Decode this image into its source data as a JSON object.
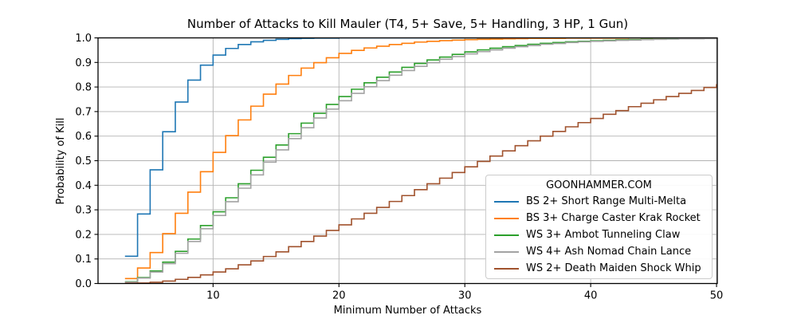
{
  "figure": {
    "title": "Number of Attacks to Kill Mauler (T4, 5+ Save, 5+ Handling, 3 HP, 1 Gun)"
  },
  "axes": {
    "xlabel": "Minimum Number of Attacks",
    "ylabel": "Probability of Kill",
    "x_tick_labels": [
      "10",
      "20",
      "30",
      "40",
      "50"
    ],
    "y_tick_labels": [
      "0.0",
      "0.1",
      "0.2",
      "0.3",
      "0.4",
      "0.5",
      "0.6",
      "0.7",
      "0.8",
      "0.9",
      "1.0"
    ]
  },
  "legend": {
    "title": "GOONHAMMER.COM"
  },
  "colors": {
    "grid": "#b3b3b3",
    "spine": "#000000",
    "legend_border": "#cccccc"
  },
  "chart_data": {
    "type": "line",
    "step_mode": "post",
    "title": "Number of Attacks to Kill Mauler (T4, 5+ Save, 5+ Handling, 3 HP, 1 Gun)",
    "xlabel": "Minimum Number of Attacks",
    "ylabel": "Probability of Kill",
    "grid": true,
    "legend_position": "lower right",
    "legend_title": "GOONHAMMER.COM",
    "xlim": [
      0.86,
      50.06
    ],
    "ylim": [
      0,
      1
    ],
    "x_ticks": [
      10,
      20,
      30,
      40,
      50
    ],
    "y_ticks": [
      0,
      0.1,
      0.2,
      0.3,
      0.4,
      0.5,
      0.6,
      0.7,
      0.8,
      0.9,
      1.0
    ],
    "x": [
      3,
      4,
      5,
      6,
      7,
      8,
      9,
      10,
      11,
      12,
      13,
      14,
      15,
      16,
      17,
      18,
      19,
      20,
      21,
      22,
      23,
      24,
      25,
      26,
      27,
      28,
      29,
      30,
      31,
      32,
      33,
      34,
      35,
      36,
      37,
      38,
      39,
      40,
      41,
      42,
      43,
      44,
      45,
      46,
      47,
      48,
      49,
      50
    ],
    "series": [
      {
        "name": "BS 2+ Short Range Multi-Melta",
        "color": "#1f77b4",
        "values": [
          0.111,
          0.283,
          0.463,
          0.618,
          0.739,
          0.828,
          0.889,
          0.93,
          0.957,
          0.973,
          0.984,
          0.99,
          0.994,
          0.997,
          0.998,
          0.999,
          0.999,
          1.0,
          1.0,
          1.0,
          1.0,
          1.0,
          1.0,
          1.0,
          1.0,
          1.0,
          1.0,
          1.0,
          1.0,
          1.0,
          1.0,
          1.0,
          1.0,
          1.0,
          1.0,
          1.0,
          1.0,
          1.0,
          1.0,
          1.0,
          1.0,
          1.0,
          1.0,
          1.0,
          1.0,
          1.0,
          1.0,
          1.0
        ]
      },
      {
        "name": "BS 3+ Charge Caster Krak Rocket",
        "color": "#ff7f0e",
        "values": [
          0.02,
          0.063,
          0.126,
          0.203,
          0.286,
          0.372,
          0.455,
          0.534,
          0.602,
          0.666,
          0.722,
          0.771,
          0.812,
          0.847,
          0.877,
          0.899,
          0.919,
          0.937,
          0.949,
          0.959,
          0.966,
          0.973,
          0.978,
          0.983,
          0.986,
          0.989,
          0.991,
          0.993,
          0.994,
          0.995,
          0.996,
          0.997,
          0.998,
          0.998,
          0.998,
          0.999,
          0.999,
          0.999,
          0.999,
          0.999,
          1.0,
          1.0,
          1.0,
          1.0,
          1.0,
          1.0,
          1.0,
          1.0
        ]
      },
      {
        "name": "WS 3+ Ambot Tunneling Claw",
        "color": "#2ca02c",
        "values": [
          0.007,
          0.024,
          0.051,
          0.087,
          0.131,
          0.181,
          0.236,
          0.292,
          0.349,
          0.406,
          0.461,
          0.514,
          0.564,
          0.61,
          0.653,
          0.693,
          0.729,
          0.761,
          0.791,
          0.817,
          0.84,
          0.861,
          0.88,
          0.896,
          0.91,
          0.922,
          0.933,
          0.943,
          0.951,
          0.958,
          0.964,
          0.969,
          0.974,
          0.978,
          0.981,
          0.984,
          0.986,
          0.988,
          0.99,
          0.992,
          0.993,
          0.994,
          0.995,
          0.996,
          0.997,
          0.997,
          0.998,
          0.998
        ]
      },
      {
        "name": "WS 4+ Ash Nomad Chain Lance",
        "color": "#a3a3a3",
        "values": [
          0.006,
          0.022,
          0.047,
          0.081,
          0.123,
          0.171,
          0.223,
          0.277,
          0.333,
          0.388,
          0.442,
          0.494,
          0.544,
          0.59,
          0.634,
          0.674,
          0.71,
          0.744,
          0.774,
          0.801,
          0.826,
          0.848,
          0.867,
          0.884,
          0.899,
          0.913,
          0.924,
          0.935,
          0.944,
          0.951,
          0.958,
          0.964,
          0.969,
          0.974,
          0.977,
          0.981,
          0.984,
          0.986,
          0.988,
          0.99,
          0.991,
          0.993,
          0.994,
          0.995,
          0.996,
          0.996,
          0.997,
          0.997
        ]
      },
      {
        "name": "WS 2+ Death Maiden Shock Whip",
        "color": "#a0522d",
        "values": [
          0.001,
          0.002,
          0.005,
          0.01,
          0.017,
          0.025,
          0.035,
          0.047,
          0.06,
          0.076,
          0.092,
          0.11,
          0.129,
          0.15,
          0.171,
          0.193,
          0.216,
          0.239,
          0.263,
          0.286,
          0.31,
          0.334,
          0.358,
          0.382,
          0.406,
          0.429,
          0.452,
          0.475,
          0.497,
          0.519,
          0.54,
          0.561,
          0.581,
          0.6,
          0.619,
          0.638,
          0.655,
          0.672,
          0.689,
          0.704,
          0.72,
          0.734,
          0.748,
          0.761,
          0.774,
          0.786,
          0.798,
          0.809
        ]
      }
    ]
  }
}
